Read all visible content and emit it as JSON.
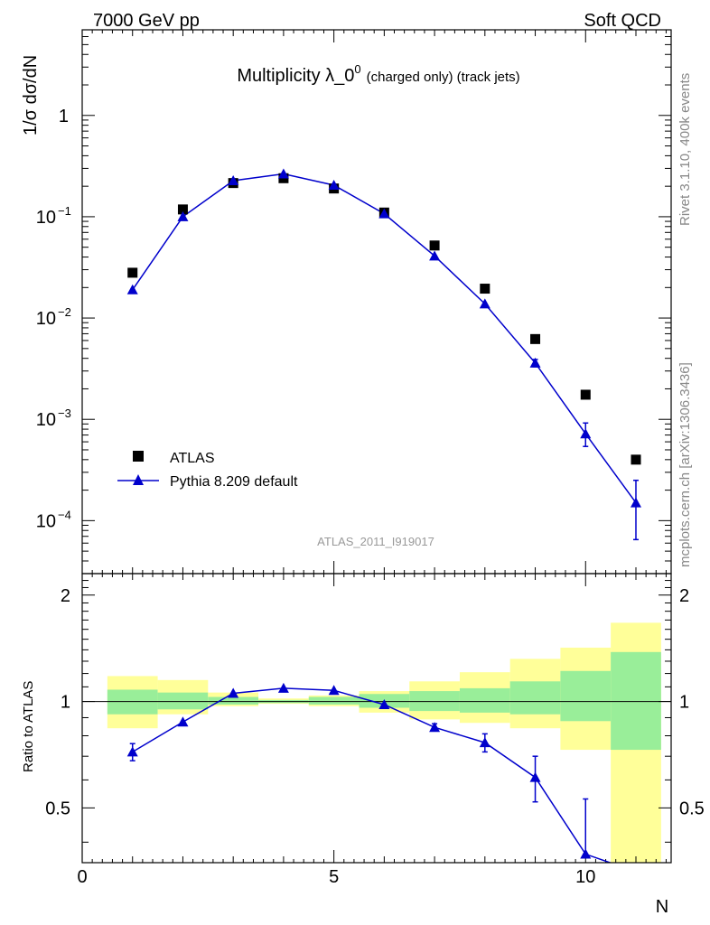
{
  "header": {
    "left": "7000 GeV pp",
    "right": "Soft QCD"
  },
  "title": {
    "main": "Multiplicity λ_0",
    "superscript": "0",
    "sub": "(charged only) (track jets)"
  },
  "side_labels": {
    "rivet": "Rivet 3.1.10,  400k events",
    "mcplots": "mcplots.cern.ch [arXiv:1306.3436]"
  },
  "watermark": "ATLAS_2011_I919017",
  "legend": {
    "data_label": "ATLAS",
    "mc_label": "Pythia 8.209 default"
  },
  "colors": {
    "data": "#000000",
    "mc": "#0000cc",
    "band_inner": "#99ee99",
    "band_outer": "#ffff99"
  },
  "chart_data": [
    {
      "type": "scatter",
      "panel": "main",
      "ylabel": "1/σ dσ/dN",
      "yscale": "log",
      "xlim": [
        0,
        11.7
      ],
      "ylim": [
        3e-05,
        7
      ],
      "y_ticklabels": [
        "10^-4",
        "10^-3",
        "10^-2",
        "10^-1",
        "1"
      ],
      "series": [
        {
          "name": "ATLAS",
          "marker": "square",
          "x": [
            1,
            2,
            3,
            4,
            5,
            6,
            7,
            8,
            9,
            10,
            11
          ],
          "y": [
            0.028,
            0.118,
            0.215,
            0.24,
            0.19,
            0.11,
            0.052,
            0.0195,
            0.0062,
            0.00175,
            0.0004
          ]
        },
        {
          "name": "Pythia 8.209 default",
          "marker": "triangle",
          "x": [
            1,
            2,
            3,
            4,
            5,
            6,
            7,
            8,
            9,
            10,
            11
          ],
          "y": [
            0.019,
            0.1,
            0.227,
            0.265,
            0.205,
            0.107,
            0.041,
            0.0138,
            0.0036,
            0.00072,
            0.00015
          ],
          "err_low": [
            0,
            0,
            0,
            0,
            0,
            0,
            0,
            0,
            0.0003,
            0.00018,
            8.5e-05
          ],
          "err_high": [
            0,
            0,
            0,
            0,
            0,
            0,
            0,
            0,
            0.0003,
            0.0002,
            0.0001
          ]
        }
      ]
    },
    {
      "type": "line",
      "panel": "ratio",
      "ylabel": "Ratio to ATLAS",
      "xlabel": "N",
      "xlim": [
        0,
        11.7
      ],
      "ylim": [
        0.35,
        2.3
      ],
      "x_ticklabels": [
        "0",
        "5",
        "10"
      ],
      "y_ticklabels": [
        "0.5",
        "1",
        "2"
      ],
      "bands": {
        "x_lo": [
          0.5,
          1.5,
          2.5,
          3.5,
          4.5,
          5.5,
          6.5,
          7.5,
          8.5,
          9.5,
          10.5
        ],
        "x_hi": [
          1.5,
          2.5,
          3.5,
          4.5,
          5.5,
          6.5,
          7.5,
          8.5,
          9.5,
          10.5,
          11.5
        ],
        "inner_lo": [
          0.92,
          0.95,
          0.98,
          0.99,
          0.98,
          0.96,
          0.94,
          0.93,
          0.92,
          0.88,
          0.73
        ],
        "inner_hi": [
          1.08,
          1.06,
          1.03,
          1.01,
          1.03,
          1.05,
          1.07,
          1.09,
          1.14,
          1.22,
          1.38
        ],
        "outer_lo": [
          0.84,
          0.92,
          0.97,
          0.985,
          0.97,
          0.93,
          0.89,
          0.87,
          0.84,
          0.73,
          0.3
        ],
        "outer_hi": [
          1.18,
          1.15,
          1.06,
          1.02,
          1.04,
          1.07,
          1.14,
          1.21,
          1.32,
          1.42,
          1.67
        ]
      },
      "series": [
        {
          "name": "Pythia 8.209 default",
          "x": [
            1,
            2,
            3,
            4,
            5,
            6,
            7,
            8,
            9,
            10,
            11
          ],
          "y": [
            0.72,
            0.875,
            1.055,
            1.09,
            1.075,
            0.98,
            0.845,
            0.765,
            0.61,
            0.37,
            0.33
          ],
          "err_low": [
            0.04,
            0,
            0,
            0,
            0,
            0,
            0.02,
            0.045,
            0.09,
            0.0,
            0
          ],
          "err_high": [
            0.04,
            0,
            0,
            0,
            0,
            0,
            0.02,
            0.045,
            0.09,
            0.16,
            0
          ]
        }
      ]
    }
  ]
}
